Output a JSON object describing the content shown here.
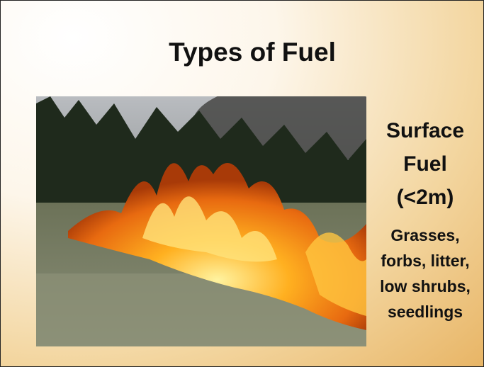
{
  "slide": {
    "title": "Types of Fuel",
    "heading": [
      "Surface",
      "Fuel",
      "(<2m)"
    ],
    "body": [
      "Grasses,",
      "forbs, litter,",
      "low shrubs,",
      "seedlings"
    ]
  }
}
